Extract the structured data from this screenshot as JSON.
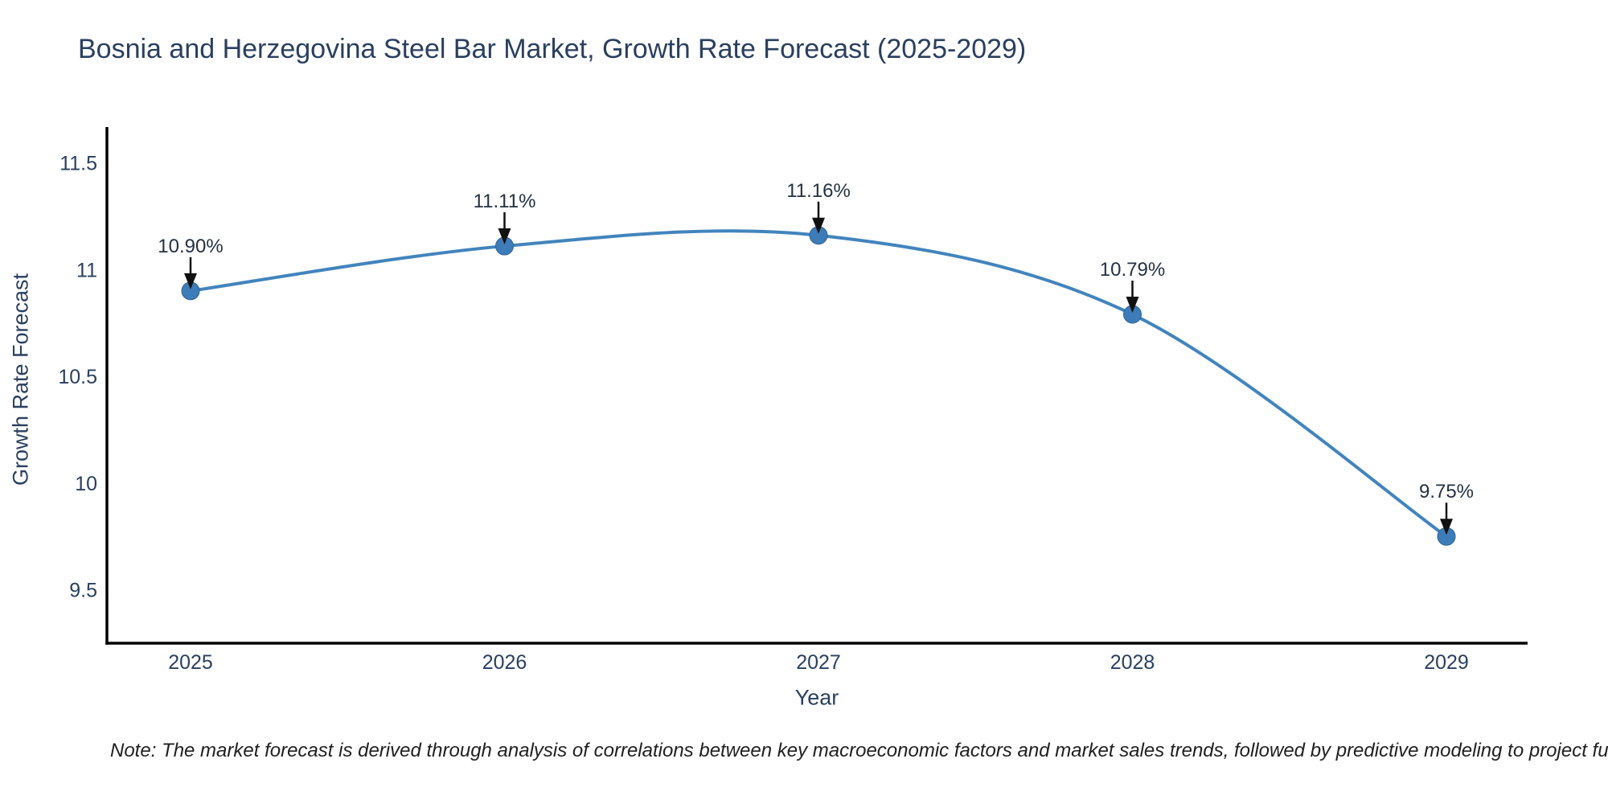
{
  "note": "Note: The market forecast is derived through analysis of correlations between key macroeconomic factors and market sales trends, followed by predictive modeling to project future sales.",
  "chart_data": {
    "type": "line",
    "title": "Bosnia and Herzegovina Steel Bar Market, Growth Rate Forecast (2025-2029)",
    "xlabel": "Year",
    "ylabel": "Growth Rate Forecast",
    "x": [
      2025,
      2026,
      2027,
      2028,
      2029
    ],
    "values": [
      10.9,
      11.11,
      11.16,
      10.79,
      9.75
    ],
    "point_labels": [
      "10.90%",
      "11.11%",
      "11.16%",
      "10.79%",
      "9.75%"
    ],
    "yticks": [
      9.5,
      10,
      10.5,
      11,
      11.5
    ],
    "ytick_labels": [
      "9.5",
      "10",
      "10.5",
      "11",
      "11.5"
    ],
    "ylim": [
      9.25,
      11.66
    ],
    "grid": false,
    "legend": false,
    "line_shape": "spline",
    "colors": {
      "line": "#4284bd",
      "marker": "#3d7cb8",
      "marker_edge": "#2f6496",
      "axis": "#000000",
      "tick_text": "#2a3f5f",
      "annotation_text": "#243142",
      "annotation_arrow": "#111111"
    }
  }
}
